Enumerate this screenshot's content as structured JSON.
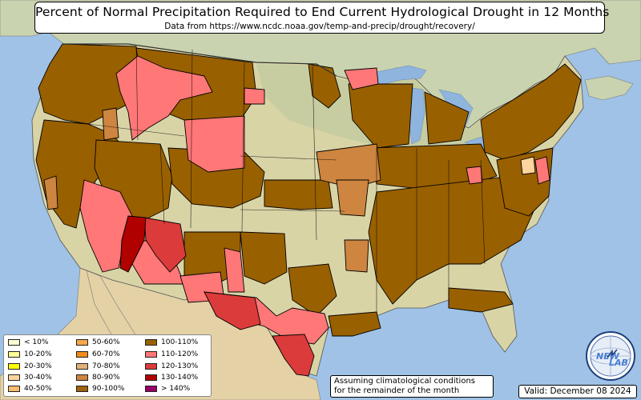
{
  "title": "Percent of Normal Precipitation Required to End Current Hydrological Drought in 12 Months",
  "subtitle": "Data from https://www.ncdc.noaa.gov/temp-and-precip/drought/recovery/",
  "legend": [
    {
      "label": "< 10%",
      "color": "#ffffd4"
    },
    {
      "label": "10-20%",
      "color": "#ffff99"
    },
    {
      "label": "20-30%",
      "color": "#ffff00"
    },
    {
      "label": "30-40%",
      "color": "#fdd49e"
    },
    {
      "label": "40-50%",
      "color": "#fdbb6c"
    },
    {
      "label": "50-60%",
      "color": "#f7a847"
    },
    {
      "label": "60-70%",
      "color": "#f08c1a"
    },
    {
      "label": "70-80%",
      "color": "#e0b27a"
    },
    {
      "label": "80-90%",
      "color": "#cd853f"
    },
    {
      "label": "90-100%",
      "color": "#a0620b"
    },
    {
      "label": "100-110%",
      "color": "#996000"
    },
    {
      "label": "110-120%",
      "color": "#ff7777"
    },
    {
      "label": "120-130%",
      "color": "#dc3b3b"
    },
    {
      "label": "130-140%",
      "color": "#b00000"
    },
    {
      "label": "> 140%",
      "color": "#990066"
    }
  ],
  "note": [
    "Assuming climatological conditions",
    "for the remainder of the month"
  ],
  "valid": "Valid: December 08 2024",
  "logo_text": [
    "NEW",
    "LAB"
  ],
  "colors": {
    "ocean": "#9fc2e6",
    "land": "#d9d4a6",
    "land_north": "#b8c79a",
    "land_south": "#e2cfa3",
    "canada": "#c9d3b0",
    "mexico": "#e4d2a6",
    "lakes": "#8fb4de",
    "drought_100_110": "#996000",
    "drought_110_120": "#ff7777",
    "drought_120_130": "#dc3b3b",
    "drought_130_140": "#b00000",
    "drought_80_90": "#cd853f"
  }
}
